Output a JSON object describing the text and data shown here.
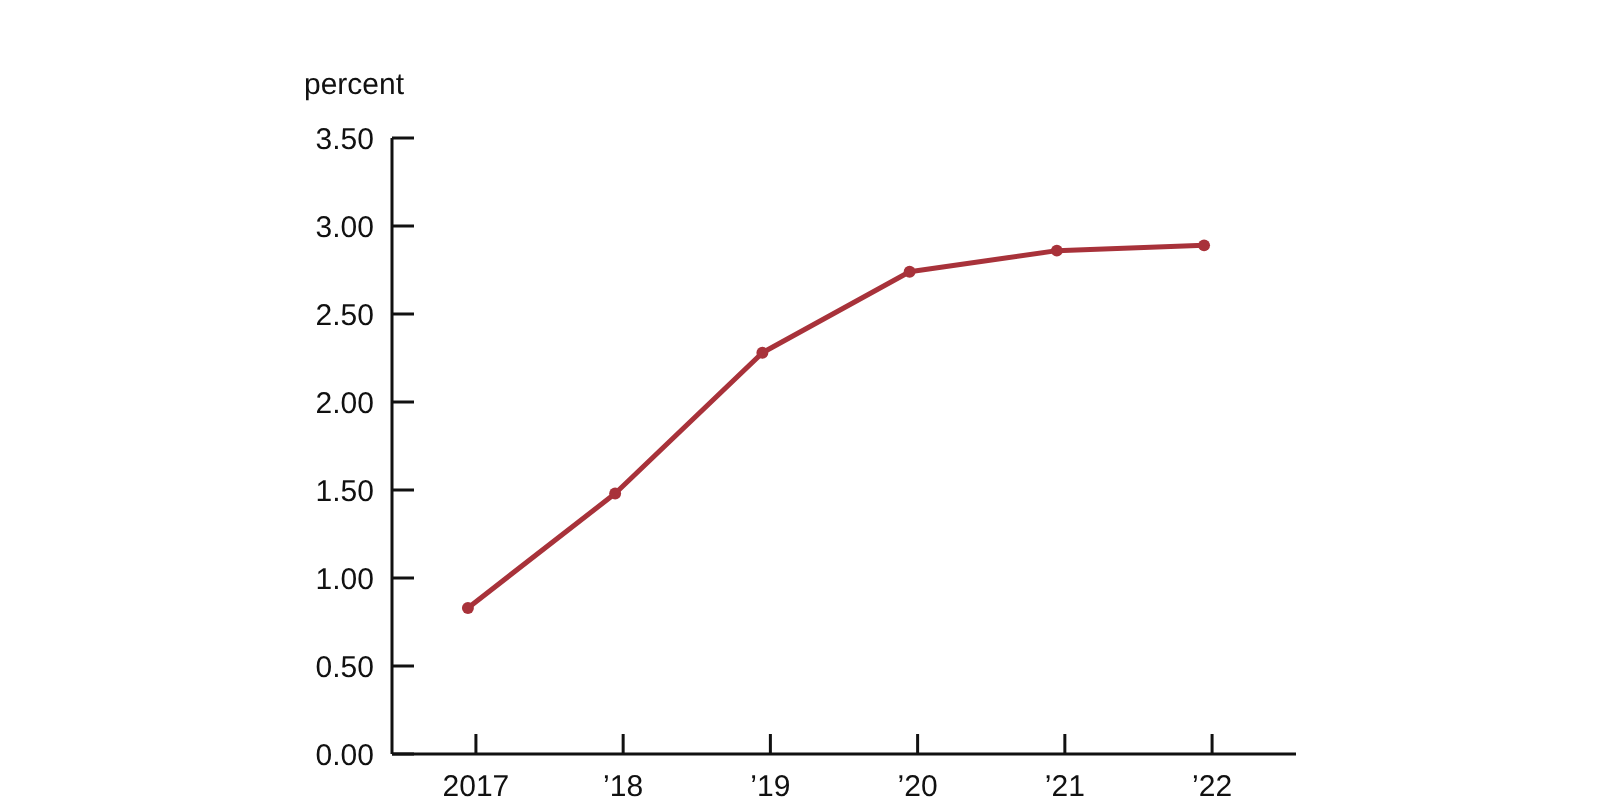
{
  "chart_data": {
    "type": "line",
    "ylabel": "percent",
    "categories": [
      "2017",
      "’18",
      "’19",
      "’20",
      "’21",
      "’22"
    ],
    "series": [
      {
        "color": "#a8323a",
        "values": [
          0.83,
          1.48,
          2.28,
          2.74,
          2.86,
          2.89
        ]
      }
    ],
    "ylim": [
      0,
      3.5
    ],
    "yticks": [
      {
        "value": 0,
        "label": "0.00"
      },
      {
        "value": 0.5,
        "label": "0.50"
      },
      {
        "value": 1,
        "label": "1.00"
      },
      {
        "value": 1.5,
        "label": "1.50"
      },
      {
        "value": 2,
        "label": "2.00"
      },
      {
        "value": 2.5,
        "label": "2.50"
      },
      {
        "value": 3,
        "label": "3.00"
      },
      {
        "value": 3.5,
        "label": "3.50"
      }
    ],
    "grid": false,
    "marker": "circle",
    "line_style": "solid"
  }
}
